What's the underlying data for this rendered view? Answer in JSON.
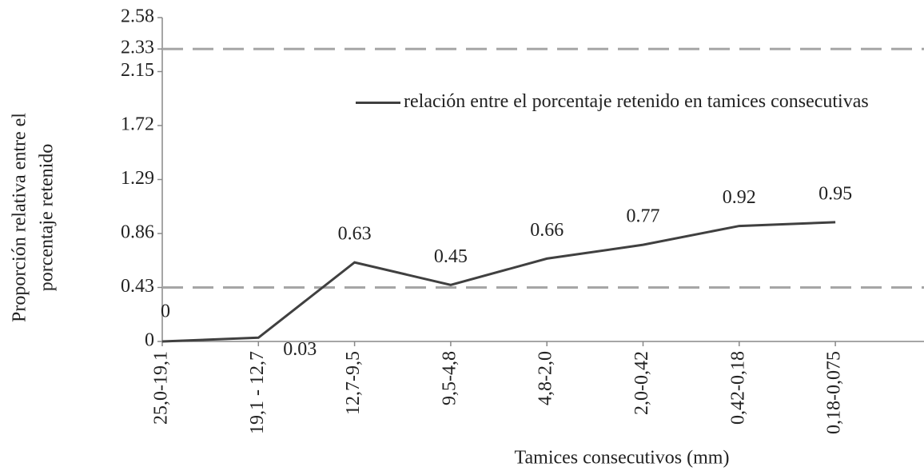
{
  "chart_data": {
    "type": "line",
    "y_label": [
      "Proporción relativa entre el",
      "porcentaje retenido"
    ],
    "x_label": "Tamices consecutivos (mm)",
    "categories": [
      "25,0-19,1",
      "19,1 - 12,7",
      "12,7-9,5",
      "9,5-4,8",
      "4,8-2,0",
      "2,0-0,42",
      "0,42-0,18",
      "0,18-0,075"
    ],
    "series": [
      {
        "name": "relación entre el porcentaje retenido en tamices consecutivas",
        "color": "#404040",
        "values": [
          0,
          0.03,
          0.63,
          0.45,
          0.66,
          0.77,
          0.92,
          0.95
        ]
      }
    ],
    "ylim": [
      0,
      2.58
    ],
    "yticks": [
      0,
      0.43,
      0.86,
      1.29,
      1.72,
      2.15,
      2.33,
      2.58
    ],
    "reference_lines": [
      2.33,
      0.43
    ],
    "reference_color": "#a6a6a6"
  }
}
